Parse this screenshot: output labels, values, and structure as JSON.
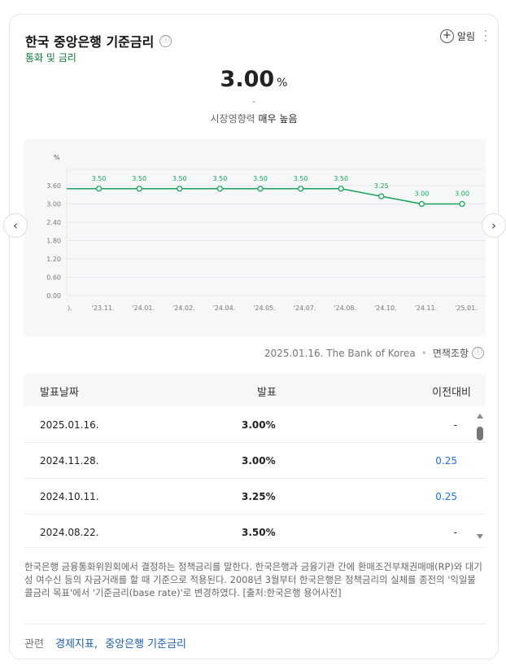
{
  "header": {
    "title": "한국 중앙은행 기준금리",
    "info_icon": "ⓘ",
    "subtitle": "통화 및 금리",
    "alarm_label": "알림"
  },
  "summary": {
    "value": "3.00",
    "unit": "%",
    "change": "-",
    "impact_label": "시장영향력",
    "impact_value": "매우 높음"
  },
  "chart_data": {
    "type": "line",
    "ylabel": "%",
    "ylim": [
      0,
      3.6
    ],
    "yticks": [
      "3.60",
      "3.00",
      "2.40",
      "1.80",
      "1.20",
      "0.60",
      "0.00"
    ],
    "categories": [
      ").",
      "'23.11.",
      "'24.01.",
      "'24.02.",
      "'24.04.",
      "'24.05.",
      "'24.07.",
      "'24.08.",
      "'24.10.",
      "'24.11.",
      "'25.01."
    ],
    "series": [
      {
        "values": [
          3.5,
          3.5,
          3.5,
          3.5,
          3.5,
          3.5,
          3.5,
          3.5,
          3.25,
          3.0,
          3.0
        ],
        "labels": [
          "",
          "3.50",
          "3.50",
          "3.50",
          "3.50",
          "3.50",
          "3.50",
          "3.50",
          "3.25",
          "3.00",
          "3.00"
        ],
        "color": "#1aa35a"
      }
    ],
    "grid": true
  },
  "source": {
    "text": "2025.01.16. The Bank of Korea",
    "disclaimer": "면책조항"
  },
  "table": {
    "headers": [
      "발표날짜",
      "발표",
      "이전대비"
    ],
    "rows": [
      {
        "date": "2025.01.16.",
        "value": "3.00%",
        "change": "-",
        "up": false
      },
      {
        "date": "2024.11.28.",
        "value": "3.00%",
        "change": "0.25",
        "up": true
      },
      {
        "date": "2024.10.11.",
        "value": "3.25%",
        "change": "0.25",
        "up": true
      },
      {
        "date": "2024.08.22.",
        "value": "3.50%",
        "change": "-",
        "up": false
      }
    ]
  },
  "description": "한국은행 금융통화위원회에서 결정하는 정책금리를 말한다. 한국은행과 금융기관 간에 환매조건부채권매매(RP)와 대기성 여수신 등의 자금거래를 할 때 기준으로 적용된다. 2008년 3월부터 한국은행은 정책금리의 실체를 종전의 '익일물 콜금리 목표'에서 '기준금리(base rate)'로 변경하였다. [출처:한국은행 용어사전]",
  "related": {
    "label": "관련",
    "links": [
      {
        "text": "경제지표,"
      },
      {
        "text": "중앙은행 기준금리"
      }
    ]
  },
  "nav": {
    "prev": "‹",
    "next": "›"
  }
}
